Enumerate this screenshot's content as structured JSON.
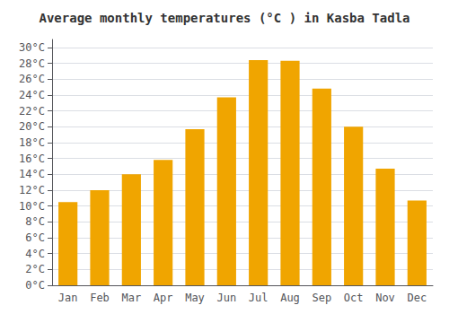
{
  "chart_data": {
    "type": "bar",
    "title": "Average monthly temperatures (°C ) in Kasba Tadla",
    "categories": [
      "Jan",
      "Feb",
      "Mar",
      "Apr",
      "May",
      "Jun",
      "Jul",
      "Aug",
      "Sep",
      "Oct",
      "Nov",
      "Dec"
    ],
    "values": [
      10.5,
      12.0,
      14.0,
      15.8,
      19.7,
      23.7,
      28.4,
      28.3,
      24.8,
      20.0,
      14.7,
      10.7
    ],
    "color": "#F0A500",
    "ylim": [
      0,
      31
    ],
    "yticks": [
      {
        "value": 0,
        "label": "0°C"
      },
      {
        "value": 2,
        "label": "2°C"
      },
      {
        "value": 4,
        "label": "4°C"
      },
      {
        "value": 6,
        "label": "6°C"
      },
      {
        "value": 8,
        "label": "8°C"
      },
      {
        "value": 10,
        "label": "10°C"
      },
      {
        "value": 12,
        "label": "12°C"
      },
      {
        "value": 14,
        "label": "14°C"
      },
      {
        "value": 16,
        "label": "16°C"
      },
      {
        "value": 18,
        "label": "18°C"
      },
      {
        "value": 20,
        "label": "20°C"
      },
      {
        "value": 22,
        "label": "22°C"
      },
      {
        "value": 24,
        "label": "24°C"
      },
      {
        "value": 26,
        "label": "26°C"
      },
      {
        "value": 28,
        "label": "28°C"
      },
      {
        "value": 30,
        "label": "30°C"
      }
    ],
    "grid": true
  }
}
